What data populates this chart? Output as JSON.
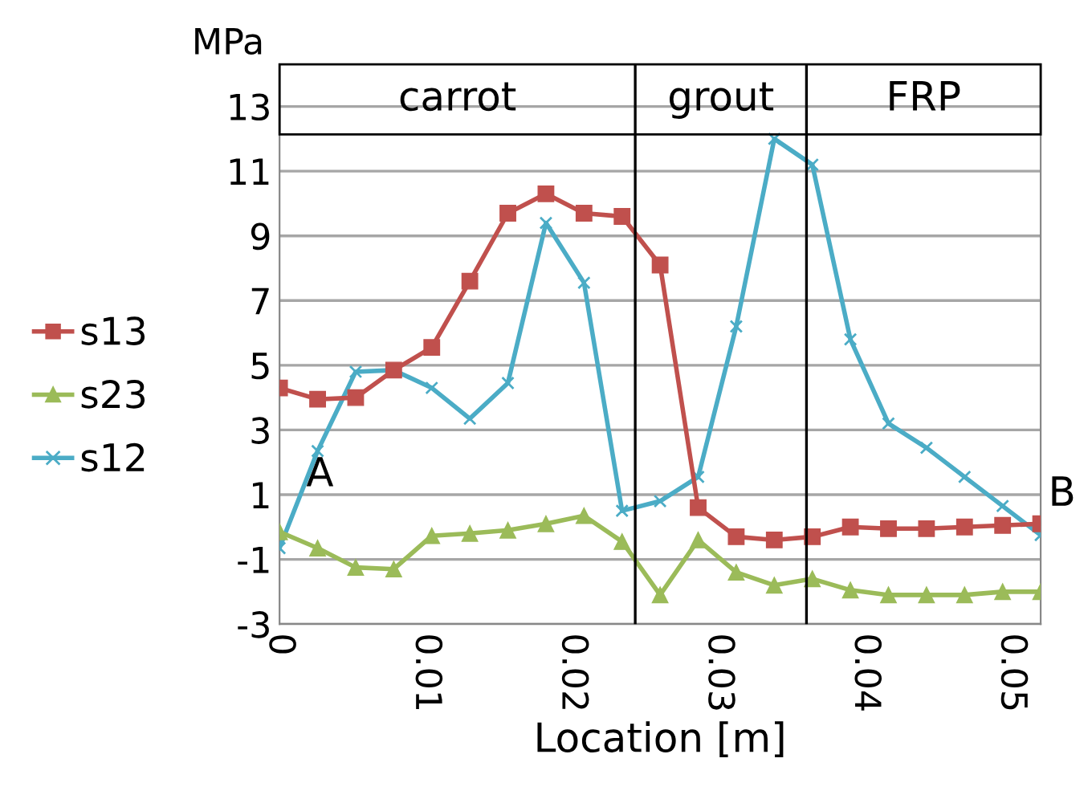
{
  "chart_data": {
    "type": "line",
    "xlabel": "Location [m]",
    "ylabel": "MPa",
    "x": [
      0,
      0.0026,
      0.0052,
      0.0078,
      0.0104,
      0.013,
      0.0156,
      0.0182,
      0.0208,
      0.0234,
      0.026,
      0.0286,
      0.0312,
      0.0338,
      0.0364,
      0.039,
      0.0416,
      0.0442,
      0.0468,
      0.0494,
      0.052
    ],
    "series": [
      {
        "name": "s13",
        "color": "#c0504d",
        "marker": "square",
        "values": [
          4.3,
          3.95,
          4.0,
          4.85,
          5.55,
          7.6,
          9.7,
          10.3,
          9.7,
          9.6,
          8.1,
          0.6,
          -0.3,
          -0.4,
          -0.3,
          0,
          -0.05,
          -0.05,
          0,
          0.05,
          0.1
        ]
      },
      {
        "name": "s23",
        "color": "#9bbb59",
        "marker": "triangle",
        "values": [
          -0.15,
          -0.65,
          -1.25,
          -1.3,
          -0.27,
          -0.2,
          -0.1,
          0.1,
          0.35,
          -0.45,
          -2.1,
          -0.4,
          -1.4,
          -1.8,
          -1.6,
          -1.95,
          -2.1,
          -2.1,
          -2.1,
          -2.0,
          -2.0
        ]
      },
      {
        "name": "s12",
        "color": "#4bacc6",
        "marker": "cross",
        "values": [
          -0.65,
          2.35,
          4.8,
          4.85,
          4.3,
          3.35,
          4.45,
          9.4,
          7.55,
          0.5,
          0.8,
          1.55,
          6.2,
          12.0,
          11.2,
          5.8,
          3.2,
          2.45,
          1.55,
          0.65,
          -0.25
        ]
      }
    ],
    "xlim": [
      0,
      0.052
    ],
    "xticks": [
      0,
      0.01,
      0.02,
      0.03,
      0.04,
      0.05
    ],
    "ylim": [
      -3,
      14.3
    ],
    "yticks": [
      -3,
      -1,
      1,
      3,
      5,
      7,
      9,
      11,
      13
    ],
    "grid": "y",
    "legend": "left",
    "ref_lines": [
      {
        "axis": "x",
        "value": 0.0243,
        "color": "#000000"
      },
      {
        "axis": "x",
        "value": 0.036,
        "color": "#000000"
      }
    ],
    "annotations": [
      "carrot",
      "grout",
      "FRP",
      "A",
      "B"
    ]
  }
}
